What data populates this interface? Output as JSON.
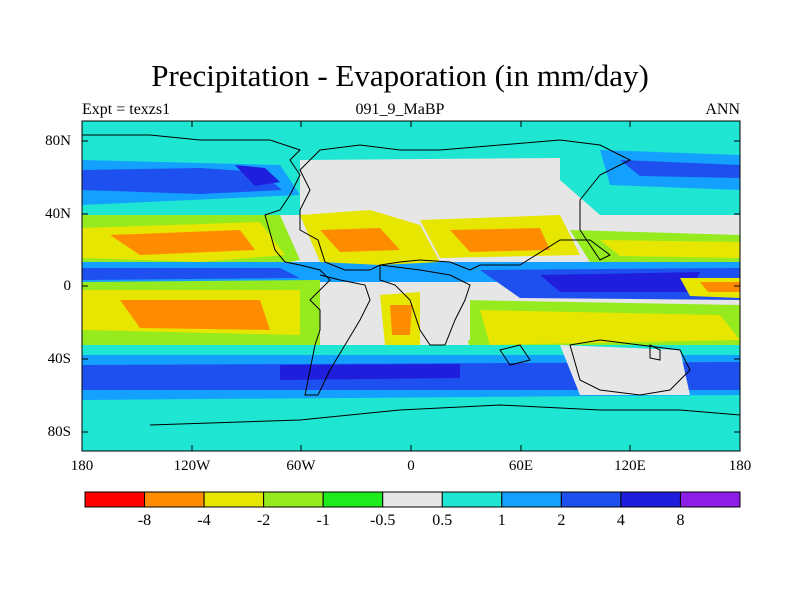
{
  "title": "Precipitation - Evaporation (in mm/day)",
  "subtitle_left": "Expt = texzs1",
  "subtitle_center": "091_9_MaBP",
  "subtitle_right": "ANN",
  "lat_labels": [
    "80N",
    "40N",
    "0",
    "40S",
    "80S"
  ],
  "lon_labels": [
    "180",
    "120W",
    "60W",
    "0",
    "60E",
    "120E",
    "180"
  ],
  "colorbar": {
    "levels": [
      "-8",
      "-4",
      "-2",
      "-1",
      "-0.5",
      "0.5",
      "1",
      "2",
      "4",
      "8"
    ],
    "colors": [
      "#ff0000",
      "#ff8c00",
      "#e6e600",
      "#96eb1e",
      "#1eeb1e",
      "#e6e6e6",
      "#1ee6d2",
      "#14a0ff",
      "#1e50f0",
      "#1e1edc",
      "#8c1ee6"
    ]
  },
  "chart_data": {
    "type": "heatmap",
    "title": "Precipitation - Evaporation (in mm/day)",
    "x_range": [
      -180,
      180
    ],
    "y_range": [
      -90,
      90
    ],
    "contour_levels": [
      -8,
      -4,
      -2,
      -1,
      -0.5,
      0.5,
      1,
      2,
      4,
      8
    ],
    "grid": false,
    "colorbar_position": "bottom"
  }
}
